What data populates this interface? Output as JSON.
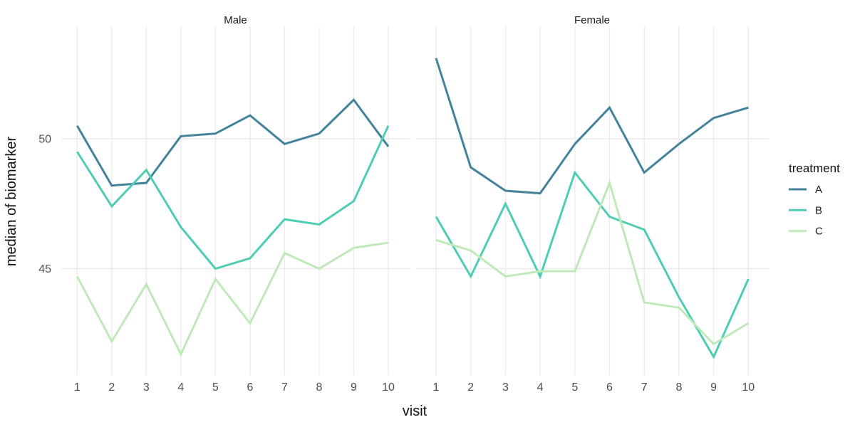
{
  "chart_data": {
    "type": "line",
    "title": "",
    "xlabel": "visit",
    "ylabel": "median of biomarker",
    "legend_title": "treatment",
    "legend_position": "right",
    "x": [
      1,
      2,
      3,
      4,
      5,
      6,
      7,
      8,
      9,
      10
    ],
    "y_ticks": [
      45,
      50
    ],
    "ylim": [
      40.9,
      54.3
    ],
    "grid": "major-only",
    "gridline_color": "#ebebeb",
    "background_color": "#ffffff",
    "facets": [
      {
        "name": "Male",
        "series": [
          {
            "name": "A",
            "color": "#44829b",
            "values": [
              50.5,
              48.2,
              48.3,
              50.1,
              50.2,
              50.9,
              49.8,
              50.2,
              51.5,
              49.7
            ]
          },
          {
            "name": "B",
            "color": "#4ecdb4",
            "values": [
              49.5,
              47.4,
              48.8,
              46.6,
              45.0,
              45.4,
              46.9,
              46.7,
              47.6,
              50.5
            ]
          },
          {
            "name": "C",
            "color": "#c0e9ba",
            "values": [
              44.7,
              42.2,
              44.4,
              41.7,
              44.6,
              42.9,
              45.6,
              45.0,
              45.8,
              46.0
            ]
          }
        ]
      },
      {
        "name": "Female",
        "series": [
          {
            "name": "A",
            "color": "#44829b",
            "values": [
              53.1,
              48.9,
              48.0,
              47.9,
              49.8,
              51.2,
              48.7,
              49.8,
              50.8,
              51.2
            ]
          },
          {
            "name": "B",
            "color": "#4ecdb4",
            "values": [
              47.0,
              44.7,
              47.5,
              44.7,
              48.7,
              47.0,
              46.5,
              43.9,
              41.6,
              44.6
            ]
          },
          {
            "name": "C",
            "color": "#c0e9ba",
            "values": [
              46.1,
              45.7,
              44.7,
              44.9,
              44.9,
              48.3,
              43.7,
              43.5,
              42.1,
              42.9
            ]
          }
        ]
      }
    ]
  }
}
